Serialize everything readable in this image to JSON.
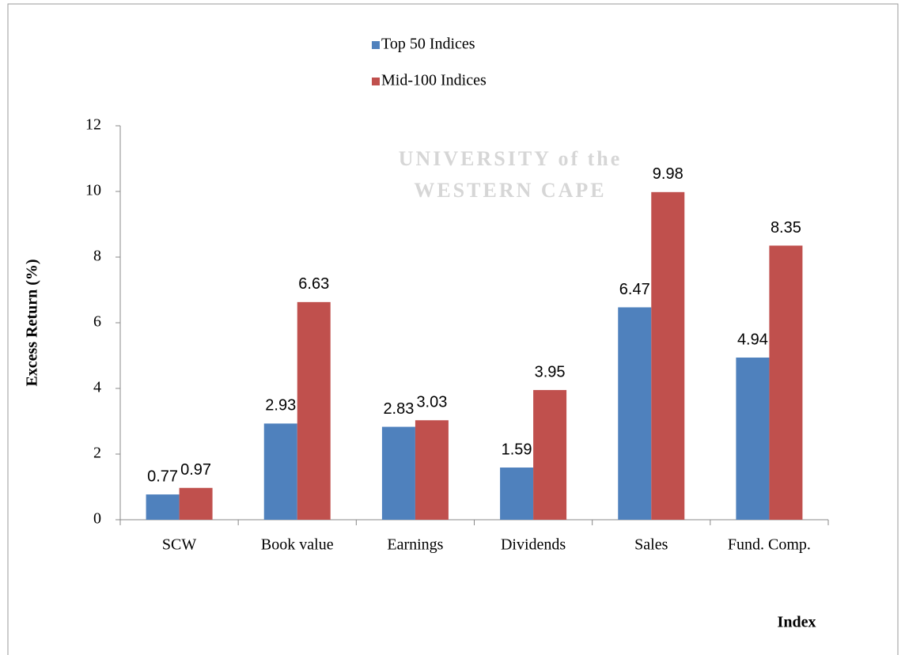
{
  "chart_data": {
    "type": "bar",
    "watermark": [
      "UNIVERSITY of the",
      "WESTERN CAPE"
    ],
    "x_label": "Index",
    "y_label": "Excess Return (%)",
    "categories": [
      "SCW",
      "Book value",
      "Earnings",
      "Dividends",
      "Sales",
      "Fund. Comp."
    ],
    "series": [
      {
        "name": "Top 50 Indices",
        "color": "#4f81bd",
        "values": [
          0.77,
          2.93,
          2.83,
          1.59,
          6.47,
          4.94
        ]
      },
      {
        "name": "Mid-100 Indices",
        "color": "#c0504d",
        "values": [
          0.97,
          6.63,
          3.03,
          3.95,
          9.98,
          8.35
        ]
      }
    ],
    "ylim": [
      0,
      12
    ],
    "yticks": [
      0,
      2,
      4,
      6,
      8,
      10,
      12
    ],
    "legend": "top"
  }
}
